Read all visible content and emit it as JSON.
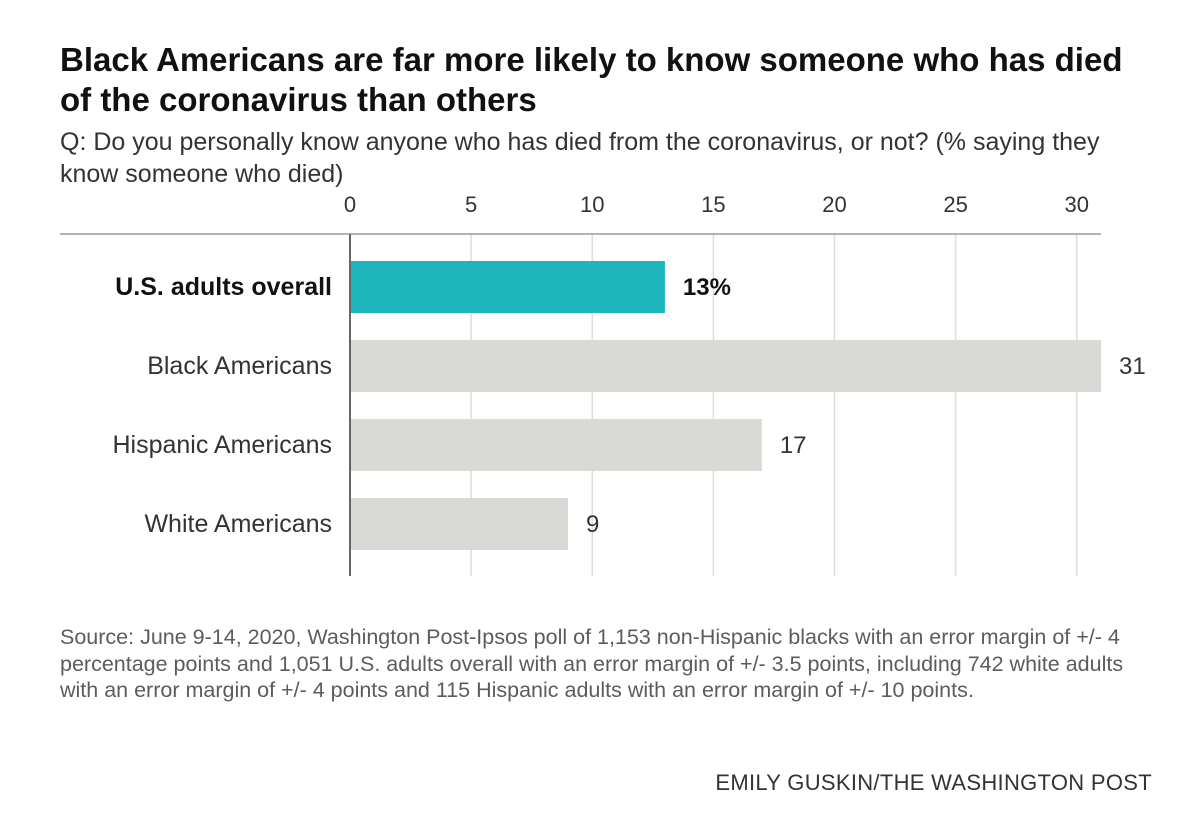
{
  "header": {
    "title": "Black Americans are far more likely to know someone who has died of the coronavirus than others",
    "subtitle": "Q: Do you personally know anyone who has died from the coronavirus, or not? (% saying they know someone who died)"
  },
  "footer": {
    "source": "Source: June 9-14, 2020, Washington Post-Ipsos poll of 1,153 non-Hispanic blacks with an error margin of +/- 4 percentage points and 1,051 U.S. adults overall with an error margin of +/- 3.5 points, including 742 white adults with an error margin of +/- 4 points and 115 Hispanic adults with an error margin of +/- 10 points.",
    "credit": "EMILY GUSKIN/THE WASHINGTON POST"
  },
  "colors": {
    "highlight": "#1fb5bd",
    "bar": "#d9d9d6",
    "grid": "#dedede",
    "axis": "#666666"
  },
  "chart_data": {
    "type": "bar",
    "orientation": "horizontal",
    "categories": [
      "U.S. adults overall",
      "Black Americans",
      "Hispanic Americans",
      "White Americans"
    ],
    "values": [
      13,
      31,
      17,
      9
    ],
    "value_labels": [
      "13%",
      "31",
      "17",
      "9"
    ],
    "highlighted": [
      true,
      false,
      false,
      false
    ],
    "xlim": [
      0,
      31
    ],
    "xticks": [
      0,
      5,
      10,
      15,
      20,
      25,
      30
    ],
    "xtick_labels": [
      "0",
      "5",
      "10",
      "15",
      "20",
      "25",
      "30"
    ],
    "grid": true,
    "axis_position": "top"
  }
}
